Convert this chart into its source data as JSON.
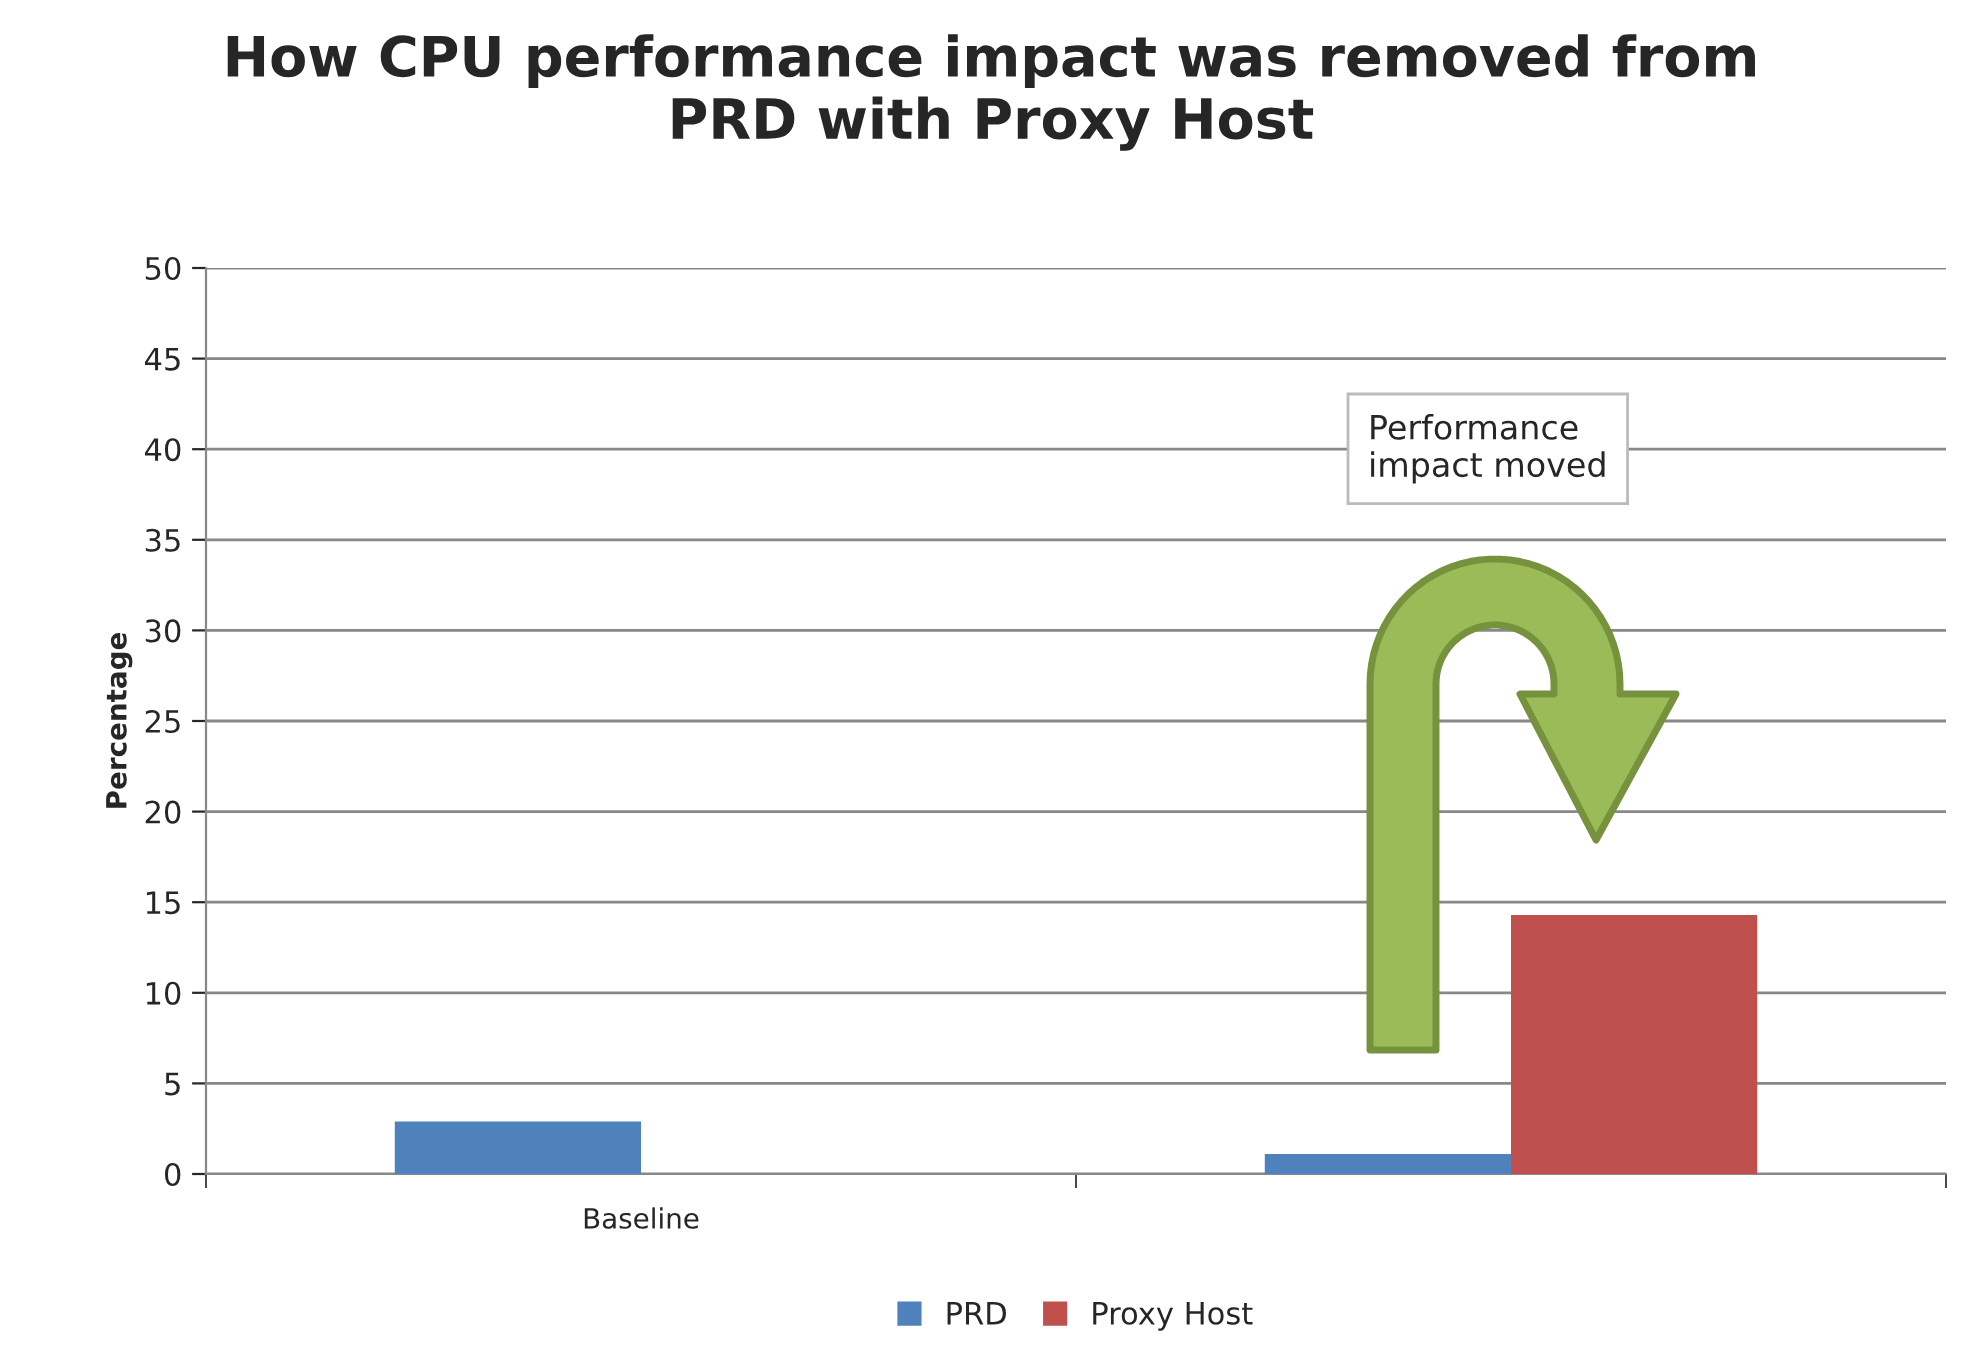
{
  "chart_data": {
    "type": "bar",
    "title": "How CPU performance impact was removed from\nPRD with Proxy Host",
    "ylabel": "Percentage",
    "categories": [
      "Baseline",
      null
    ],
    "series": [
      {
        "name": "PRD",
        "color": "#4f81bd",
        "values": [
          2.9,
          1.1
        ]
      },
      {
        "name": "Proxy Host",
        "color": "#c0504d",
        "values": [
          null,
          14.3
        ]
      }
    ],
    "ylim": [
      0,
      50
    ],
    "yticks": [
      0,
      5,
      10,
      15,
      20,
      25,
      30,
      35,
      40,
      45,
      50
    ],
    "grid": "y",
    "legend": "bottom",
    "annotations": [
      "Performance\nimpact moved"
    ]
  }
}
